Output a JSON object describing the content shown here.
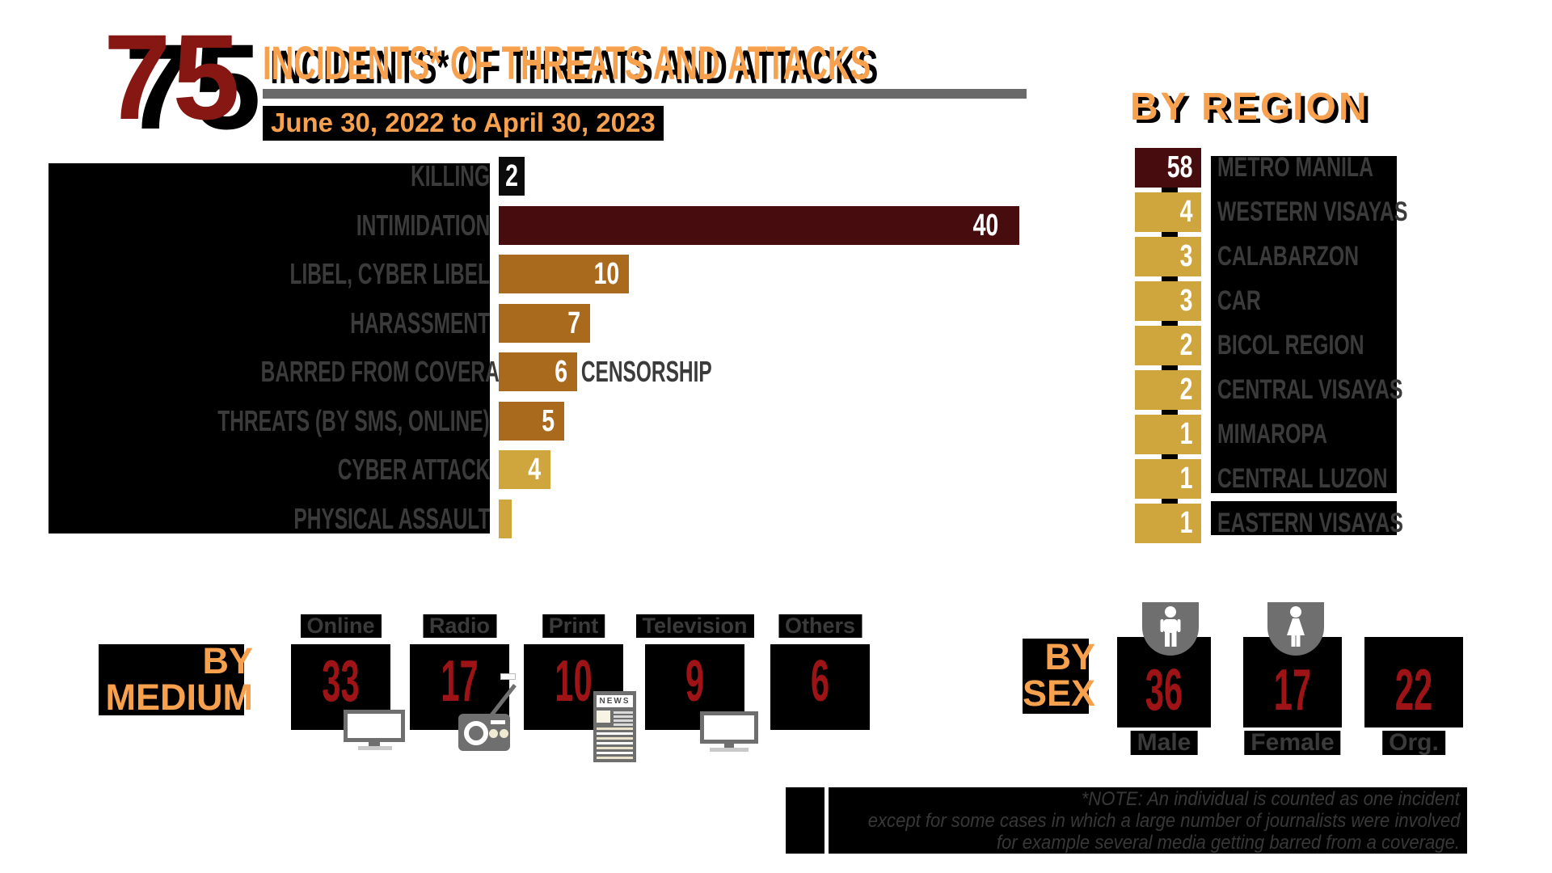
{
  "header": {
    "total": "75",
    "title": "INCIDENTS* OF THREATS AND ATTACKS",
    "date_range": "June 30, 2022 to April 30, 2023"
  },
  "chart_data": [
    {
      "id": "incidents_by_type",
      "type": "bar",
      "orientation": "horizontal",
      "title": "INCIDENTS* OF THREATS AND ATTACKS",
      "subtitle": "June 30, 2022 to April 30, 2023",
      "total": 75,
      "categories": [
        "KILLING",
        "INTIMIDATION",
        "LIBEL, CYBER LIBEL",
        "HARASSMENT",
        "BARRED FROM COVERAGE AND CENSORSHIP",
        "THREATS (BY SMS, ONLINE)",
        "CYBER ATTACK",
        "PHYSICAL ASSAULT"
      ],
      "values": [
        2,
        40,
        10,
        7,
        6,
        5,
        4,
        1
      ],
      "bar_colors": [
        "#0B0B0B",
        "#470C0D",
        "#A96A1E",
        "#A96A1E",
        "#A96A1E",
        "#A96A1E",
        "#CFA63D",
        "#CFA63D"
      ],
      "value_labels_shown": [
        true,
        true,
        true,
        true,
        true,
        true,
        true,
        false
      ],
      "xlim": [
        0,
        41
      ],
      "gridlines": false,
      "legend": false
    },
    {
      "id": "incidents_by_region",
      "type": "bar",
      "title": "BY REGION",
      "categories": [
        "METRO MANILA",
        "WESTERN VISAYAS",
        "CALABARZON",
        "CAR",
        "BICOL REGION",
        "CENTRAL VISAYAS",
        "MIMAROPA",
        "CENTRAL LUZON",
        "EASTERN VISAYAS"
      ],
      "values": [
        58,
        4,
        3,
        3,
        2,
        2,
        1,
        1,
        1
      ],
      "box_colors": [
        "#470C0D",
        "#CFA63D",
        "#CFA63D",
        "#CFA63D",
        "#CFA63D",
        "#CFA63D",
        "#CFA63D",
        "#CFA63D",
        "#CFA63D"
      ]
    },
    {
      "id": "incidents_by_medium",
      "type": "pictogram",
      "title": "BY MEDIUM",
      "categories": [
        "Online",
        "Radio",
        "Print",
        "Television",
        "Others"
      ],
      "values": [
        33,
        17,
        10,
        9,
        6
      ],
      "icons": [
        "monitor-icon",
        "radio-icon",
        "newspaper-icon",
        "tv-icon",
        null
      ]
    },
    {
      "id": "incidents_by_sex",
      "type": "pictogram",
      "title": "BY SEX",
      "categories": [
        "Male",
        "Female",
        "Org."
      ],
      "values": [
        36,
        17,
        22
      ],
      "icons": [
        "male-icon",
        "female-icon",
        null
      ]
    }
  ],
  "by_medium": {
    "title_line1": "BY",
    "title_line2": "MEDIUM"
  },
  "by_sex": {
    "title_line1": "BY",
    "title_line2": "SEX"
  },
  "newspaper_icon_text": "NEWS",
  "note": {
    "lines": [
      "*NOTE: An individual is counted as one incident",
      "except for some cases in which a large number of journalists were involved",
      "for example several media getting barred from a coverage."
    ]
  },
  "colors": {
    "orange": "#F7A14E",
    "big_number_red": "#871712",
    "card_number_red": "#9E1315",
    "maroon": "#470C0D",
    "brown": "#A96A1E",
    "gold": "#CFA63D",
    "label_gray": "#3B3B3B",
    "icon_gray": "#6F6F6F",
    "rule_gray": "#6A6A6A",
    "black": "#000000"
  }
}
